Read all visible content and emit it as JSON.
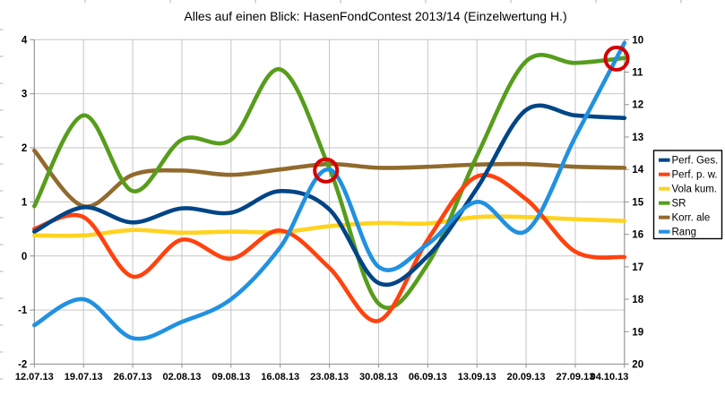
{
  "title": "Alles auf einen Blick: HasenFondContest 2013/14 (Einzelwertung H.)",
  "colors": {
    "background": "#FFFFFF",
    "grid": "#C6C6C6",
    "axis": "#8F8F8F",
    "text": "#000000",
    "legend_border": "#000000",
    "annotation": "#D40000",
    "sheet_marks": "#B3B3B3"
  },
  "chart_data": {
    "type": "line",
    "title": "Alles auf einen Blick: HasenFondContest 2013/14 (Einzelwertung H.)",
    "xlabel": "",
    "ylabel_left": "",
    "ylabel_right": "",
    "grid": true,
    "legend_position": "right",
    "categories": [
      "12.07.13",
      "19.07.13",
      "26.07.13",
      "02.08.13",
      "09.08.13",
      "16.08.13",
      "23.08.13",
      "30.08.13",
      "06.09.13",
      "13.09.13",
      "20.09.13",
      "27.09.13",
      "04.10.13"
    ],
    "left_axis": {
      "min": -2,
      "max": 4,
      "ticks": [
        4,
        3,
        2,
        1,
        0,
        -1,
        -2
      ]
    },
    "right_axis": {
      "min": 10,
      "max": 20,
      "inverted": true,
      "ticks": [
        10,
        11,
        12,
        13,
        14,
        15,
        16,
        17,
        18,
        19,
        20
      ]
    },
    "series": [
      {
        "name": "Perf. Ges.",
        "color": "#004586",
        "axis": "left",
        "values": [
          0.45,
          0.9,
          0.62,
          0.88,
          0.8,
          1.2,
          0.86,
          -0.5,
          0.0,
          1.25,
          2.7,
          2.6,
          2.55
        ]
      },
      {
        "name": "Perf. p. w.",
        "color": "#FF420E",
        "axis": "left",
        "values": [
          0.5,
          0.72,
          -0.38,
          0.3,
          -0.05,
          0.47,
          -0.22,
          -1.2,
          0.3,
          1.47,
          1.05,
          0.08,
          -0.02
        ]
      },
      {
        "name": "Vola kum.",
        "color": "#FFD320",
        "axis": "left",
        "values": [
          0.38,
          0.38,
          0.48,
          0.43,
          0.45,
          0.44,
          0.55,
          0.61,
          0.6,
          0.72,
          0.72,
          0.68,
          0.65
        ]
      },
      {
        "name": "SR",
        "color": "#579D1C",
        "axis": "left",
        "values": [
          0.92,
          2.6,
          1.2,
          2.15,
          2.15,
          3.45,
          1.62,
          -0.88,
          -0.15,
          1.85,
          3.6,
          3.57,
          3.66
        ]
      },
      {
        "name": "Korr. ale",
        "color": "#916A2D",
        "axis": "left",
        "values": [
          1.95,
          0.92,
          1.5,
          1.58,
          1.5,
          1.6,
          1.7,
          1.63,
          1.65,
          1.69,
          1.7,
          1.65,
          1.63
        ]
      },
      {
        "name": "Rang",
        "color": "#2191E0",
        "axis": "right",
        "values": [
          18.8,
          18.0,
          19.2,
          18.7,
          18.0,
          16.4,
          14.0,
          17.0,
          16.3,
          15.0,
          15.9,
          13.0,
          10.1
        ]
      }
    ],
    "draw_order": [
      2,
      4,
      3,
      1,
      0,
      5
    ],
    "annotations": [
      {
        "type": "circle",
        "week": 5.93,
        "axis": "left",
        "value": 1.58,
        "radius": 12.5
      },
      {
        "type": "circle",
        "week": 11.84,
        "axis": "left",
        "value": 3.65,
        "radius": 12.5
      }
    ]
  }
}
